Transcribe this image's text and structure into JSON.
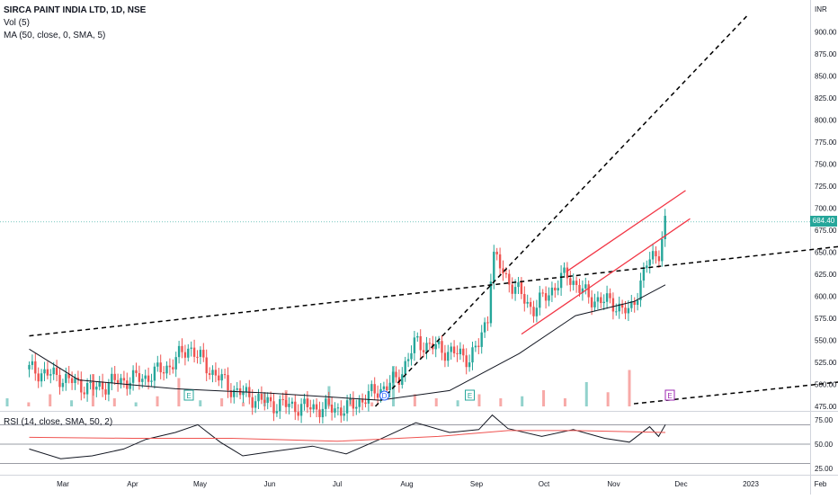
{
  "header": {
    "title": "SIRCA PAINT INDIA LTD, 1D, NSE",
    "volume_indicator": "Vol (5)",
    "ma_indicator": "MA (50, close, 0, SMA, 5)",
    "rsi_indicator": "RSI (14, close, SMA, 50, 2)",
    "currency": "INR"
  },
  "last_price": "684.40",
  "colors": {
    "up_candle": "#26a69a",
    "down_candle": "#ef5350",
    "channel_lines": "#f23645",
    "trend_lines": "#000000",
    "ma_line": "#131722",
    "rsi_line": "#131722",
    "rsi_ma_line": "#ef5350",
    "volume_ma_line": "#2962ff",
    "price_badge": "#26a69a"
  },
  "chart_data": [
    {
      "type": "candlestick",
      "title": "SIRCA PAINT INDIA LTD, 1D, NSE",
      "y_ticks": [
        "900.00",
        "875.00",
        "850.00",
        "825.00",
        "800.00",
        "775.00",
        "750.00",
        "725.00",
        "700.00",
        "675.00",
        "650.00",
        "625.00",
        "600.00",
        "575.00",
        "550.00",
        "525.00",
        "500.00",
        "475.00"
      ],
      "x_ticks": [
        "Mar",
        "Apr",
        "May",
        "Jun",
        "Jul",
        "Aug",
        "Sep",
        "Oct",
        "Nov",
        "Dec",
        "2023",
        "Feb"
      ],
      "ylim": [
        470,
        910
      ],
      "grid": false,
      "event_markers": [
        "E",
        "D",
        "E",
        "E"
      ],
      "price_path": [
        [
          "2022-02-14",
          517
        ],
        [
          "2022-02-28",
          508
        ],
        [
          "2022-03-14",
          495
        ],
        [
          "2022-03-24",
          503
        ],
        [
          "2022-04-07",
          508
        ],
        [
          "2022-04-18",
          522
        ],
        [
          "2022-04-26",
          543
        ],
        [
          "2022-05-06",
          515
        ],
        [
          "2022-05-16",
          493
        ],
        [
          "2022-06-01",
          478
        ],
        [
          "2022-06-17",
          474
        ],
        [
          "2022-07-05",
          472
        ],
        [
          "2022-07-15",
          487
        ],
        [
          "2022-07-28",
          506
        ],
        [
          "2022-08-05",
          548
        ],
        [
          "2022-08-16",
          540
        ],
        [
          "2022-08-29",
          530
        ],
        [
          "2022-09-02",
          545
        ],
        [
          "2022-09-06",
          578
        ],
        [
          "2022-09-08",
          648
        ],
        [
          "2022-09-14",
          622
        ],
        [
          "2022-09-26",
          585
        ],
        [
          "2022-10-11",
          625
        ],
        [
          "2022-10-21",
          598
        ],
        [
          "2022-11-01",
          592
        ],
        [
          "2022-11-08",
          580
        ],
        [
          "2022-11-16",
          638
        ],
        [
          "2022-11-21",
          650
        ],
        [
          "2022-11-24",
          684.4
        ]
      ],
      "moving_average": [
        [
          "2022-02-14",
          540
        ],
        [
          "2022-03-08",
          505
        ],
        [
          "2022-04-20",
          495
        ],
        [
          "2022-06-01",
          490
        ],
        [
          "2022-07-20",
          482
        ],
        [
          "2022-08-20",
          493
        ],
        [
          "2022-09-20",
          535
        ],
        [
          "2022-10-15",
          578
        ],
        [
          "2022-11-10",
          594
        ],
        [
          "2022-11-24",
          613
        ]
      ],
      "trend_lines": [
        {
          "from": [
            "2022-02-14",
            555
          ],
          "to": [
            "2023-03-01",
            662
          ]
        },
        {
          "from": [
            "2022-07-18",
            475
          ],
          "to": [
            "2022-12-31",
            920
          ]
        },
        {
          "from": [
            "2022-11-10",
            478
          ],
          "to": [
            "2023-03-01",
            508
          ]
        }
      ],
      "channel": [
        {
          "from": [
            "2022-09-21",
            557
          ],
          "to": [
            "2022-12-05",
            688
          ]
        },
        {
          "from": [
            "2022-10-11",
            628
          ],
          "to": [
            "2022-12-03",
            720
          ]
        }
      ]
    },
    {
      "type": "bar",
      "title": "Vol (5)",
      "note": "volume histogram overlaid at bottom of price pane",
      "values_relative": [
        0.2,
        0.1,
        0.3,
        0.15,
        0.8,
        0.2,
        0.1,
        0.25,
        0.7,
        0.15,
        0.2,
        0.1,
        0.35,
        0.4,
        0.2,
        0.5,
        0.2,
        0.1,
        1.0,
        0.3,
        0.2,
        0.15,
        0.3,
        0.2,
        0.25,
        0.4,
        0.2,
        0.6,
        0.35,
        0.9
      ]
    },
    {
      "type": "line",
      "title": "RSI (14, close, SMA, 50, 2)",
      "y_ticks": [
        "75.00",
        "50.00",
        "25.00"
      ],
      "ylim": [
        20,
        80
      ],
      "bands": [
        70,
        50,
        30
      ],
      "rsi": [
        [
          "2022-02-14",
          45
        ],
        [
          "2022-02-28",
          35
        ],
        [
          "2022-03-14",
          38
        ],
        [
          "2022-03-28",
          45
        ],
        [
          "2022-04-07",
          55
        ],
        [
          "2022-04-20",
          62
        ],
        [
          "2022-04-30",
          70
        ],
        [
          "2022-05-10",
          52
        ],
        [
          "2022-05-20",
          38
        ],
        [
          "2022-06-01",
          42
        ],
        [
          "2022-06-20",
          48
        ],
        [
          "2022-07-05",
          40
        ],
        [
          "2022-07-20",
          55
        ],
        [
          "2022-08-05",
          72
        ],
        [
          "2022-08-20",
          62
        ],
        [
          "2022-09-02",
          65
        ],
        [
          "2022-09-08",
          80
        ],
        [
          "2022-09-15",
          66
        ],
        [
          "2022-09-30",
          58
        ],
        [
          "2022-10-14",
          65
        ],
        [
          "2022-10-28",
          56
        ],
        [
          "2022-11-08",
          52
        ],
        [
          "2022-11-17",
          68
        ],
        [
          "2022-11-21",
          58
        ],
        [
          "2022-11-24",
          70
        ]
      ],
      "rsi_ma": [
        [
          "2022-02-14",
          57
        ],
        [
          "2022-04-01",
          56
        ],
        [
          "2022-05-15",
          56
        ],
        [
          "2022-07-01",
          53
        ],
        [
          "2022-08-15",
          58
        ],
        [
          "2022-09-15",
          64
        ],
        [
          "2022-10-15",
          64
        ],
        [
          "2022-11-24",
          62
        ]
      ]
    }
  ]
}
